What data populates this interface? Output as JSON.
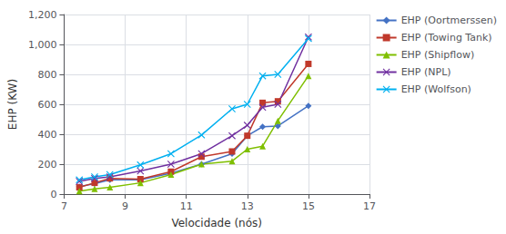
{
  "chart_data": {
    "type": "line",
    "xlabel": "Velocidade (nós)",
    "ylabel": "EHP (KW)",
    "x": [
      7.5,
      8.0,
      8.5,
      9.5,
      10.5,
      11.5,
      12.5,
      13.0,
      13.5,
      14.0,
      15.0
    ],
    "series": [
      {
        "name": "EHP (Oortmerssen)",
        "color": "#4472C4",
        "marker": "diamond",
        "values": [
          50,
          70,
          95,
          95,
          140,
          200,
          270,
          390,
          450,
          455,
          590
        ]
      },
      {
        "name": "EHP (Towing Tank)",
        "color": "#C0392B",
        "marker": "square",
        "values": [
          45,
          75,
          105,
          100,
          150,
          250,
          285,
          390,
          610,
          620,
          870
        ]
      },
      {
        "name": "EHP (Shipflow)",
        "color": "#7FBF00",
        "marker": "triangle",
        "values": [
          20,
          35,
          45,
          75,
          130,
          200,
          220,
          300,
          320,
          490,
          790
        ]
      },
      {
        "name": "EHP (NPL)",
        "color": "#7030A0",
        "marker": "x",
        "values": [
          85,
          105,
          115,
          155,
          200,
          270,
          390,
          460,
          580,
          600,
          1050
        ]
      },
      {
        "name": "EHP (Wolfson)",
        "color": "#00B0F0",
        "marker": "x",
        "values": [
          95,
          115,
          130,
          195,
          270,
          395,
          570,
          600,
          790,
          800,
          1040
        ]
      }
    ],
    "xlim": [
      7,
      17
    ],
    "xticks": [
      7,
      9,
      11,
      13,
      15,
      17
    ],
    "ylim": [
      0,
      1200
    ],
    "yticks": [
      0,
      200,
      400,
      600,
      800,
      1000,
      1200
    ],
    "grid": true,
    "legend": "right"
  }
}
